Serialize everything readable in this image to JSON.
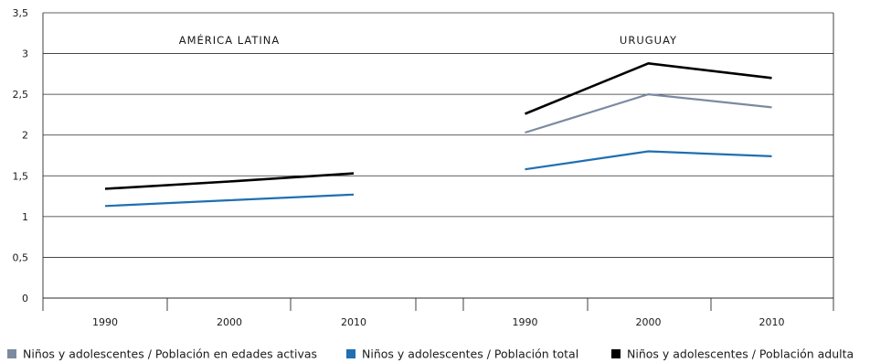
{
  "chart_data": {
    "type": "line",
    "ylim": [
      0,
      3.5
    ],
    "yticks": [
      "0",
      "0,5",
      "1",
      "1,5",
      "2",
      "2,5",
      "3",
      "3,5"
    ],
    "grid": true,
    "legend_position": "bottom",
    "colors": {
      "activas": "#7b8aa0",
      "total": "#1f6fb2",
      "adulta": "#000000"
    },
    "panels": [
      {
        "title": "AMÉRICA LATINA",
        "categories": [
          "1990",
          "2000",
          "2010"
        ],
        "series": [
          {
            "key": "total",
            "values": [
              1.13,
              1.2,
              1.27
            ]
          },
          {
            "key": "adulta",
            "values": [
              1.34,
              1.43,
              1.53
            ]
          }
        ]
      },
      {
        "title": "URUGUAY",
        "categories": [
          "1990",
          "2000",
          "2010"
        ],
        "series": [
          {
            "key": "activas",
            "values": [
              2.03,
              2.5,
              2.34
            ]
          },
          {
            "key": "total",
            "values": [
              1.58,
              1.8,
              1.74
            ]
          },
          {
            "key": "adulta",
            "values": [
              2.26,
              2.88,
              2.7
            ]
          }
        ]
      }
    ],
    "legend": [
      {
        "key": "activas",
        "label": "Niños y adolescentes / Población en edades activas"
      },
      {
        "key": "total",
        "label": "Niños y adolescentes / Población total"
      },
      {
        "key": "adulta",
        "label": "Niños y adolescentes / Población adulta"
      }
    ]
  }
}
